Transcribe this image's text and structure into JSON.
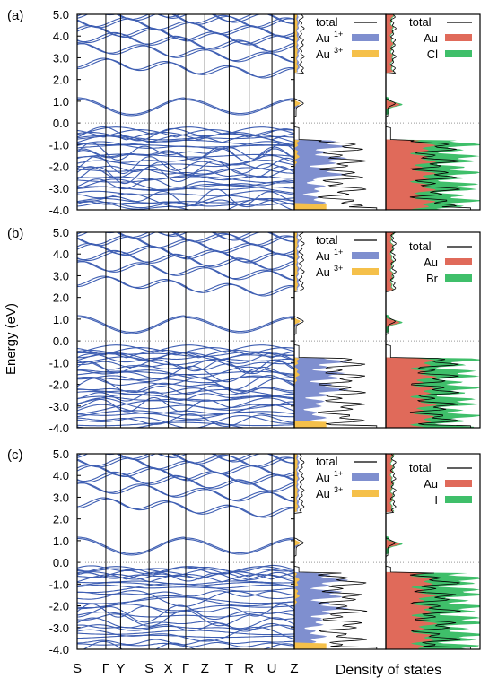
{
  "figure": {
    "ylabel": "Energy (eV)",
    "dos_label": "Density of states",
    "kpath": [
      "S",
      "Γ",
      "Y",
      "S",
      "X",
      "Γ",
      "Z",
      "T",
      "R",
      "U",
      "Z"
    ],
    "colors": {
      "band": "#3f5fb3",
      "au1": "#7f8fcf",
      "au3": "#f5c04a",
      "au": "#e06a5a",
      "halide": "#3fbf6a",
      "total": "#000000",
      "fermi": "#999999"
    }
  },
  "chart_data": [
    {
      "type": "line",
      "panel": "(a)",
      "ylabel": "Energy (eV)",
      "ylim": [
        -4.0,
        5.0
      ],
      "yticks": [
        "5.0",
        "4.0",
        "3.0",
        "2.0",
        "1.0",
        "0.0",
        "-1.0",
        "-2.0",
        "-3.0",
        "-4.0"
      ],
      "xticks": [
        "S",
        "Γ",
        "Y",
        "S",
        "X",
        "Γ",
        "Z",
        "T",
        "R",
        "U",
        "Z"
      ],
      "fermi_level": 0.0,
      "series": [
        {
          "name": "total",
          "legend_group": "dos1"
        },
        {
          "name": "Au1+",
          "legend_group": "dos1"
        },
        {
          "name": "Au3+",
          "legend_group": "dos1"
        },
        {
          "name": "total",
          "legend_group": "dos2"
        },
        {
          "name": "Au",
          "legend_group": "dos2"
        },
        {
          "name": "Cl",
          "legend_group": "dos2"
        }
      ],
      "legend1": {
        "total": "total",
        "a": "Au",
        "a_sup": "1+",
        "b": "Au",
        "b_sup": "3+"
      },
      "legend2": {
        "total": "total",
        "a": "Au",
        "b": "Cl"
      }
    },
    {
      "type": "line",
      "panel": "(b)",
      "ylabel": "Energy (eV)",
      "ylim": [
        -4.0,
        5.0
      ],
      "yticks": [
        "5.0",
        "4.0",
        "3.0",
        "2.0",
        "1.0",
        "0.0",
        "-1.0",
        "-2.0",
        "-3.0",
        "-4.0"
      ],
      "xticks": [
        "S",
        "Γ",
        "Y",
        "S",
        "X",
        "Γ",
        "Z",
        "T",
        "R",
        "U",
        "Z"
      ],
      "fermi_level": 0.0,
      "series": [
        {
          "name": "total",
          "legend_group": "dos1"
        },
        {
          "name": "Au1+",
          "legend_group": "dos1"
        },
        {
          "name": "Au3+",
          "legend_group": "dos1"
        },
        {
          "name": "total",
          "legend_group": "dos2"
        },
        {
          "name": "Au",
          "legend_group": "dos2"
        },
        {
          "name": "Br",
          "legend_group": "dos2"
        }
      ],
      "legend1": {
        "total": "total",
        "a": "Au",
        "a_sup": "1+",
        "b": "Au",
        "b_sup": "3+"
      },
      "legend2": {
        "total": "total",
        "a": "Au",
        "b": "Br"
      }
    },
    {
      "type": "line",
      "panel": "(c)",
      "ylabel": "Energy (eV)",
      "ylim": [
        -4.0,
        5.0
      ],
      "yticks": [
        "5.0",
        "4.0",
        "3.0",
        "2.0",
        "1.0",
        "0.0",
        "-1.0",
        "-2.0",
        "-3.0",
        "-4.0"
      ],
      "xticks": [
        "S",
        "Γ",
        "Y",
        "S",
        "X",
        "Γ",
        "Z",
        "T",
        "R",
        "U",
        "Z"
      ],
      "fermi_level": 0.0,
      "series": [
        {
          "name": "total",
          "legend_group": "dos1"
        },
        {
          "name": "Au1+",
          "legend_group": "dos1"
        },
        {
          "name": "Au3+",
          "legend_group": "dos1"
        },
        {
          "name": "total",
          "legend_group": "dos2"
        },
        {
          "name": "Au",
          "legend_group": "dos2"
        },
        {
          "name": "I",
          "legend_group": "dos2"
        }
      ],
      "legend1": {
        "total": "total",
        "a": "Au",
        "a_sup": "1+",
        "b": "Au",
        "b_sup": "3+"
      },
      "legend2": {
        "total": "total",
        "a": "Au",
        "b": "I"
      }
    }
  ]
}
